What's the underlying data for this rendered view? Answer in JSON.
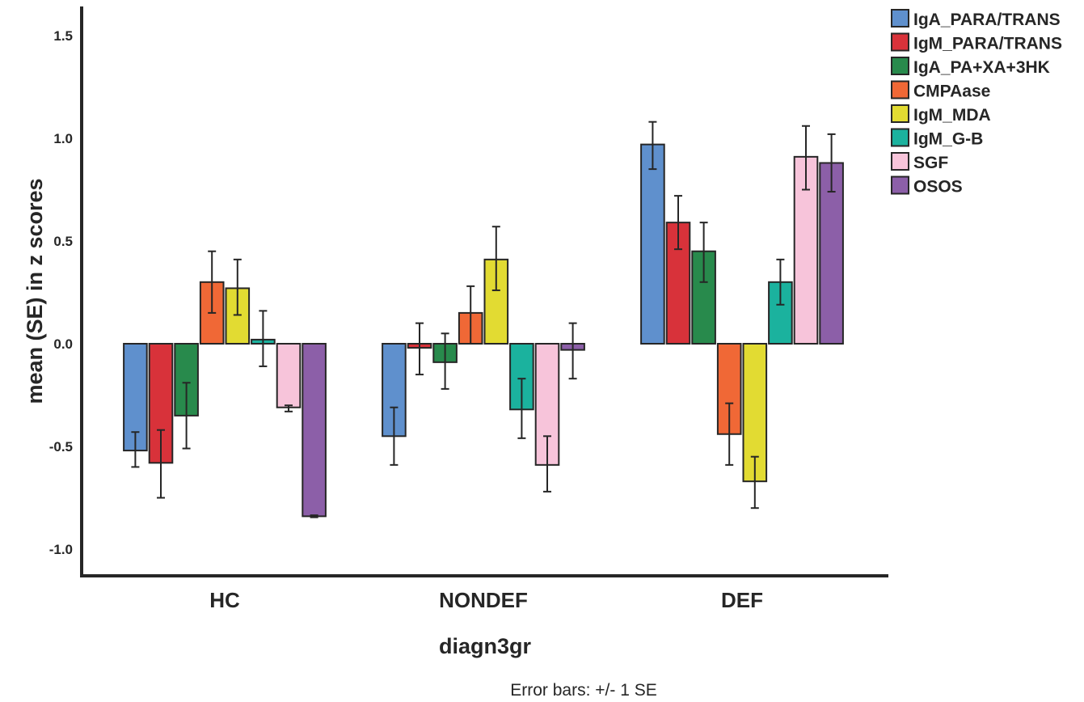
{
  "chart_data": {
    "type": "bar",
    "title": "",
    "xlabel": "diagn3gr",
    "ylabel": "mean (SE) in z scores",
    "footnote": "Error bars: +/- 1 SE",
    "ylim": [
      -1.12,
      1.65
    ],
    "yticks": [
      -1.0,
      -0.5,
      0.0,
      0.5,
      1.0,
      1.5
    ],
    "ytick_labels": [
      "-1.0",
      "-0.5",
      "0.0",
      "0.5",
      "1.0",
      "1.5"
    ],
    "grid": false,
    "legend_position": "top-right",
    "categories": [
      "HC",
      "NONDEF",
      "DEF"
    ],
    "series": [
      {
        "name": "IgA_PARA/TRANS",
        "color": "#5f90cd",
        "values": [
          -0.52,
          -0.45,
          0.97
        ],
        "err_low": [
          -0.6,
          -0.59,
          0.85
        ],
        "err_high": [
          -0.43,
          -0.31,
          1.08
        ]
      },
      {
        "name": "IgM_PARA/TRANS",
        "color": "#d8323a",
        "values": [
          -0.58,
          -0.02,
          0.59
        ],
        "err_low": [
          -0.75,
          -0.15,
          0.46
        ],
        "err_high": [
          -0.42,
          0.1,
          0.72
        ]
      },
      {
        "name": "IgA_PA+XA+3HK",
        "color": "#288a4c",
        "values": [
          -0.35,
          -0.09,
          0.45
        ],
        "err_low": [
          -0.51,
          -0.22,
          0.3
        ],
        "err_high": [
          -0.19,
          0.05,
          0.59
        ]
      },
      {
        "name": "CMPAase",
        "color": "#f06836",
        "values": [
          0.3,
          0.15,
          -0.44
        ],
        "err_low": [
          0.15,
          0.0,
          -0.59
        ],
        "err_high": [
          0.45,
          0.28,
          -0.29
        ]
      },
      {
        "name": "IgM_MDA",
        "color": "#e2db32",
        "values": [
          0.27,
          0.41,
          -0.67
        ],
        "err_low": [
          0.14,
          0.26,
          -0.8
        ],
        "err_high": [
          0.41,
          0.57,
          -0.55
        ]
      },
      {
        "name": "IgM_G-B",
        "color": "#1bb29e",
        "values": [
          0.02,
          -0.32,
          0.3
        ],
        "err_low": [
          -0.11,
          -0.46,
          0.19
        ],
        "err_high": [
          0.16,
          -0.17,
          0.41
        ]
      },
      {
        "name": "SGF",
        "color": "#f7c4da",
        "values": [
          -0.31,
          -0.59,
          0.91
        ],
        "err_low": [
          -0.33,
          -0.72,
          0.75
        ],
        "err_high": [
          -0.3,
          -0.45,
          1.06
        ]
      },
      {
        "name": "OSOS",
        "color": "#8c5fa8",
        "values": [
          -0.84,
          -0.03,
          0.88
        ],
        "err_low": [
          -0.845,
          -0.17,
          0.74
        ],
        "err_high": [
          -0.835,
          0.1,
          1.02
        ]
      }
    ]
  }
}
